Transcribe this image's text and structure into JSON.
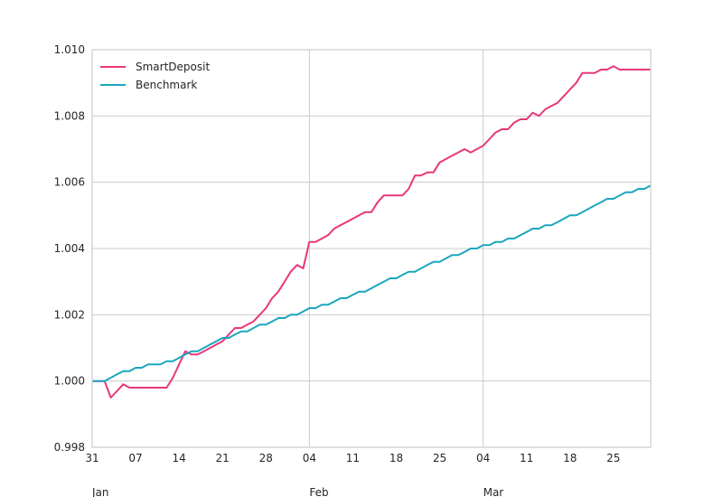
{
  "chart_data": {
    "type": "line",
    "title": "",
    "xlabel": "",
    "ylabel": "",
    "ylim": [
      0.998,
      1.01
    ],
    "yticks": [
      0.998,
      1.0,
      1.002,
      1.004,
      1.006,
      1.008,
      1.01
    ],
    "ytick_labels": [
      "0.998",
      "1.000",
      "1.002",
      "1.004",
      "1.006",
      "1.008",
      "1.010"
    ],
    "xlim": [
      "2018-12-31",
      "2019-03-31"
    ],
    "xticks": [
      {
        "date": "2018-12-31",
        "label": "31",
        "month": "Jan"
      },
      {
        "date": "2019-01-07",
        "label": "07"
      },
      {
        "date": "2019-01-14",
        "label": "14"
      },
      {
        "date": "2019-01-21",
        "label": "21"
      },
      {
        "date": "2019-01-28",
        "label": "28"
      },
      {
        "date": "2019-02-04",
        "label": "04",
        "month": "Feb"
      },
      {
        "date": "2019-02-11",
        "label": "11"
      },
      {
        "date": "2019-02-18",
        "label": "18"
      },
      {
        "date": "2019-02-25",
        "label": "25"
      },
      {
        "date": "2019-03-04",
        "label": "04",
        "month": "Mar"
      },
      {
        "date": "2019-03-11",
        "label": "11"
      },
      {
        "date": "2019-03-18",
        "label": "18"
      },
      {
        "date": "2019-03-25",
        "label": "25"
      }
    ],
    "major_gridlines_x": [
      "2019-02-04",
      "2019-03-04"
    ],
    "grid": "horizontal at y ticks; vertical at month boundaries",
    "legend": "upper-left",
    "x": [
      "2018-12-31",
      "2019-01-01",
      "2019-01-02",
      "2019-01-03",
      "2019-01-04",
      "2019-01-05",
      "2019-01-06",
      "2019-01-07",
      "2019-01-08",
      "2019-01-09",
      "2019-01-10",
      "2019-01-11",
      "2019-01-12",
      "2019-01-13",
      "2019-01-14",
      "2019-01-15",
      "2019-01-16",
      "2019-01-17",
      "2019-01-18",
      "2019-01-19",
      "2019-01-20",
      "2019-01-21",
      "2019-01-22",
      "2019-01-23",
      "2019-01-24",
      "2019-01-25",
      "2019-01-26",
      "2019-01-27",
      "2019-01-28",
      "2019-01-29",
      "2019-01-30",
      "2019-01-31",
      "2019-02-01",
      "2019-02-02",
      "2019-02-03",
      "2019-02-04",
      "2019-02-05",
      "2019-02-06",
      "2019-02-07",
      "2019-02-08",
      "2019-02-09",
      "2019-02-10",
      "2019-02-11",
      "2019-02-12",
      "2019-02-13",
      "2019-02-14",
      "2019-02-15",
      "2019-02-16",
      "2019-02-17",
      "2019-02-18",
      "2019-02-19",
      "2019-02-20",
      "2019-02-21",
      "2019-02-22",
      "2019-02-23",
      "2019-02-24",
      "2019-02-25",
      "2019-02-26",
      "2019-02-27",
      "2019-02-28",
      "2019-03-01",
      "2019-03-02",
      "2019-03-03",
      "2019-03-04",
      "2019-03-05",
      "2019-03-06",
      "2019-03-07",
      "2019-03-08",
      "2019-03-09",
      "2019-03-10",
      "2019-03-11",
      "2019-03-12",
      "2019-03-13",
      "2019-03-14",
      "2019-03-15",
      "2019-03-16",
      "2019-03-17",
      "2019-03-18",
      "2019-03-19",
      "2019-03-20",
      "2019-03-21",
      "2019-03-22",
      "2019-03-23",
      "2019-03-24",
      "2019-03-25",
      "2019-03-26",
      "2019-03-27",
      "2019-03-28",
      "2019-03-29",
      "2019-03-30",
      "2019-03-31"
    ],
    "series": [
      {
        "name": "SmartDeposit",
        "color": "#e8377a",
        "values": [
          1.0,
          1.0,
          1.0,
          0.9995,
          0.9997,
          0.9999,
          0.9998,
          0.9998,
          0.9998,
          0.9998,
          0.9998,
          0.9998,
          0.9998,
          1.0001,
          1.0005,
          1.0009,
          1.0008,
          1.0008,
          1.0009,
          1.001,
          1.0011,
          1.0012,
          1.0014,
          1.0016,
          1.0016,
          1.0017,
          1.0018,
          1.002,
          1.0022,
          1.0025,
          1.0027,
          1.003,
          1.0033,
          1.0035,
          1.0034,
          1.0042,
          1.0042,
          1.0043,
          1.0044,
          1.0046,
          1.0047,
          1.0048,
          1.0049,
          1.005,
          1.0051,
          1.0051,
          1.0054,
          1.0056,
          1.0056,
          1.0056,
          1.0056,
          1.0058,
          1.0062,
          1.0062,
          1.0063,
          1.0063,
          1.0066,
          1.0067,
          1.0068,
          1.0069,
          1.007,
          1.0069,
          1.007,
          1.0071,
          1.0073,
          1.0075,
          1.0076,
          1.0076,
          1.0078,
          1.0079,
          1.0079,
          1.0081,
          1.008,
          1.0082,
          1.0083,
          1.0084,
          1.0086,
          1.0088,
          1.009,
          1.0093,
          1.0093,
          1.0093,
          1.0094,
          1.0094,
          1.0095,
          1.0094,
          1.0094,
          1.0094,
          1.0094,
          1.0094,
          1.0094
        ]
      },
      {
        "name": "Benchmark",
        "color": "#1aa7bd",
        "values": [
          1.0,
          1.0,
          1.0,
          1.0001,
          1.0002,
          1.0003,
          1.0003,
          1.0004,
          1.0004,
          1.0005,
          1.0005,
          1.0005,
          1.0006,
          1.0006,
          1.0007,
          1.0008,
          1.0009,
          1.0009,
          1.001,
          1.0011,
          1.0012,
          1.0013,
          1.0013,
          1.0014,
          1.0015,
          1.0015,
          1.0016,
          1.0017,
          1.0017,
          1.0018,
          1.0019,
          1.0019,
          1.002,
          1.002,
          1.0021,
          1.0022,
          1.0022,
          1.0023,
          1.0023,
          1.0024,
          1.0025,
          1.0025,
          1.0026,
          1.0027,
          1.0027,
          1.0028,
          1.0029,
          1.003,
          1.0031,
          1.0031,
          1.0032,
          1.0033,
          1.0033,
          1.0034,
          1.0035,
          1.0036,
          1.0036,
          1.0037,
          1.0038,
          1.0038,
          1.0039,
          1.004,
          1.004,
          1.0041,
          1.0041,
          1.0042,
          1.0042,
          1.0043,
          1.0043,
          1.0044,
          1.0045,
          1.0046,
          1.0046,
          1.0047,
          1.0047,
          1.0048,
          1.0049,
          1.005,
          1.005,
          1.0051,
          1.0052,
          1.0053,
          1.0054,
          1.0055,
          1.0055,
          1.0056,
          1.0057,
          1.0057,
          1.0058,
          1.0058,
          1.0059
        ]
      }
    ]
  }
}
